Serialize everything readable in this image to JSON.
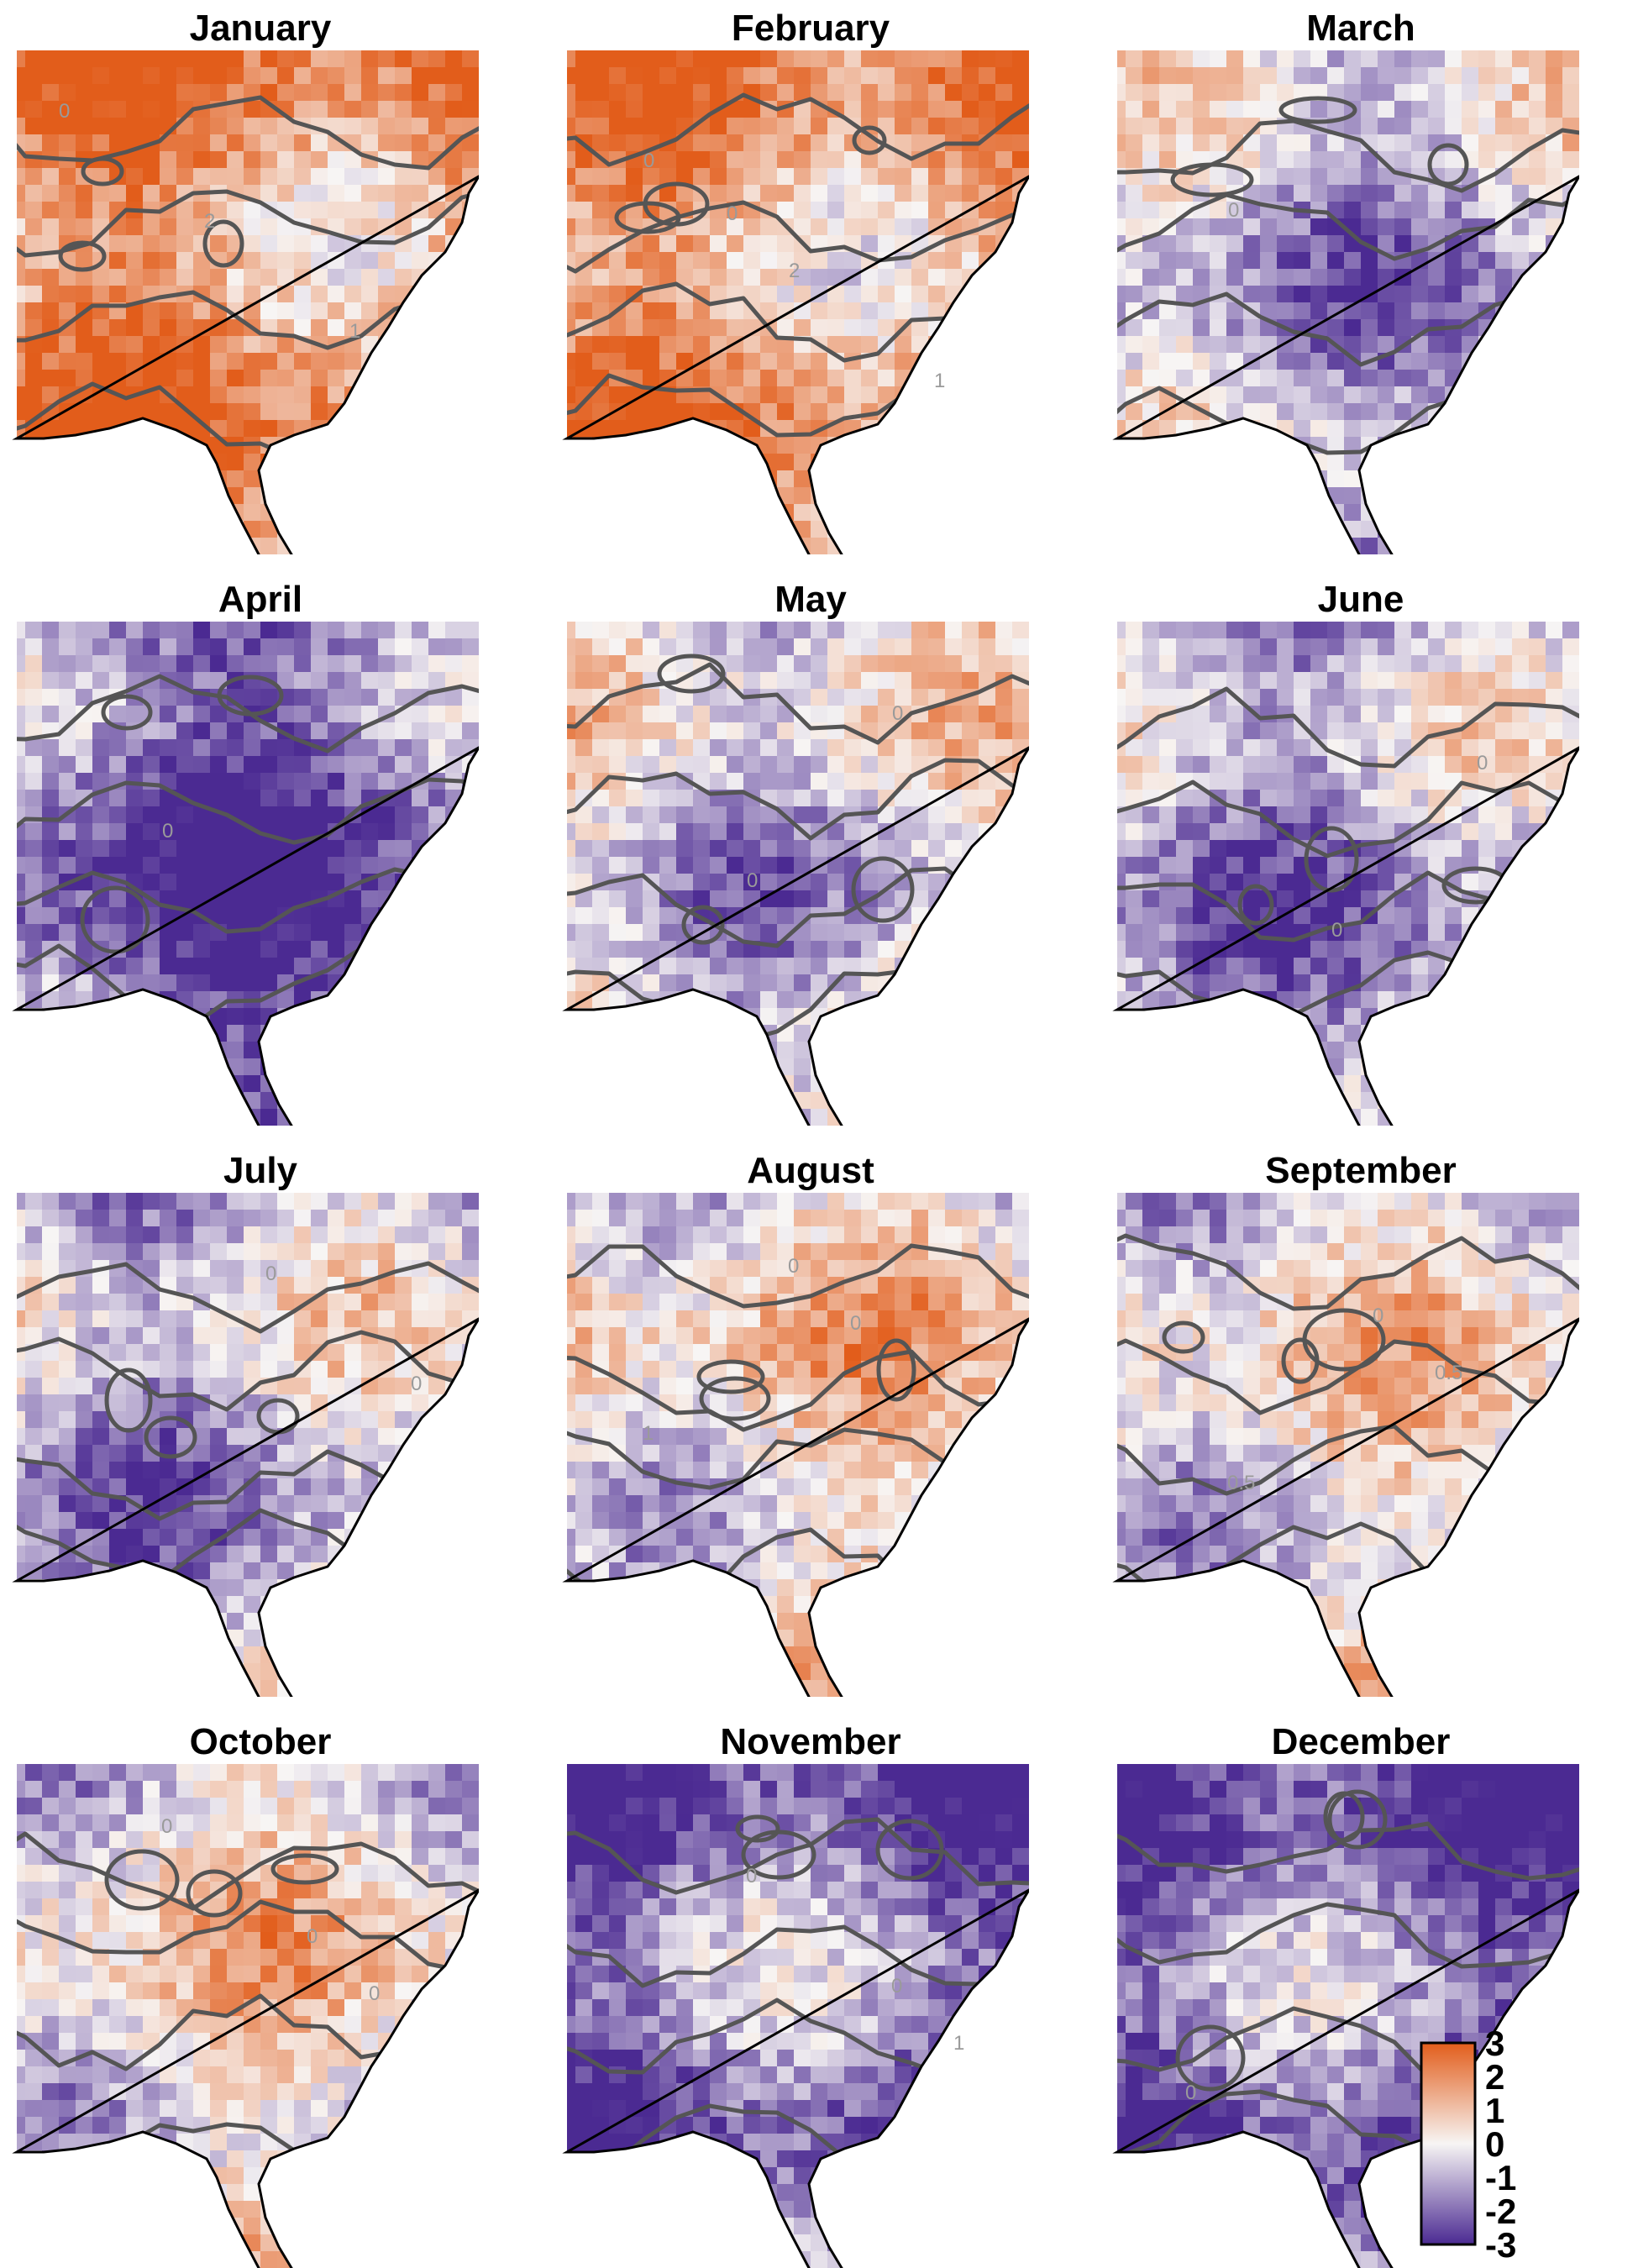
{
  "panels": [
    {
      "title": "January",
      "contour_labels": [
        "0",
        "2",
        "1"
      ],
      "tone": 1.4
    },
    {
      "title": "February",
      "contour_labels": [
        "0",
        "2",
        "1",
        "0"
      ],
      "tone": 1.2
    },
    {
      "title": "March",
      "contour_labels": [
        "0"
      ],
      "tone": -0.6
    },
    {
      "title": "April",
      "contour_labels": [
        "0"
      ],
      "tone": -1.6
    },
    {
      "title": "May",
      "contour_labels": [
        "0",
        "0"
      ],
      "tone": -0.3
    },
    {
      "title": "June",
      "contour_labels": [
        "0",
        "0"
      ],
      "tone": -0.8
    },
    {
      "title": "July",
      "contour_labels": [
        "0",
        "0"
      ],
      "tone": -0.6
    },
    {
      "title": "August",
      "contour_labels": [
        "0",
        "1",
        "0"
      ],
      "tone": 0.2
    },
    {
      "title": "September",
      "contour_labels": [
        "0.5",
        "0.5",
        "0"
      ],
      "tone": 0.0
    },
    {
      "title": "October",
      "contour_labels": [
        "0",
        "0",
        "0"
      ],
      "tone": 0.1
    },
    {
      "title": "November",
      "contour_labels": [
        "1",
        "0",
        "0"
      ],
      "tone": -1.4
    },
    {
      "title": "December",
      "contour_labels": [
        "0"
      ],
      "tone": -1.5
    }
  ],
  "legend": {
    "ticks": [
      "3",
      "2",
      "1",
      "0",
      "-1",
      "-2",
      "-3"
    ],
    "range": [
      -3,
      3
    ],
    "colors": {
      "high": "#e25d1b",
      "mid": "#f7f5f4",
      "low": "#4b2a92"
    }
  },
  "colors": {
    "contour": "#555555",
    "coastline": "#000000",
    "title": "#000000"
  }
}
